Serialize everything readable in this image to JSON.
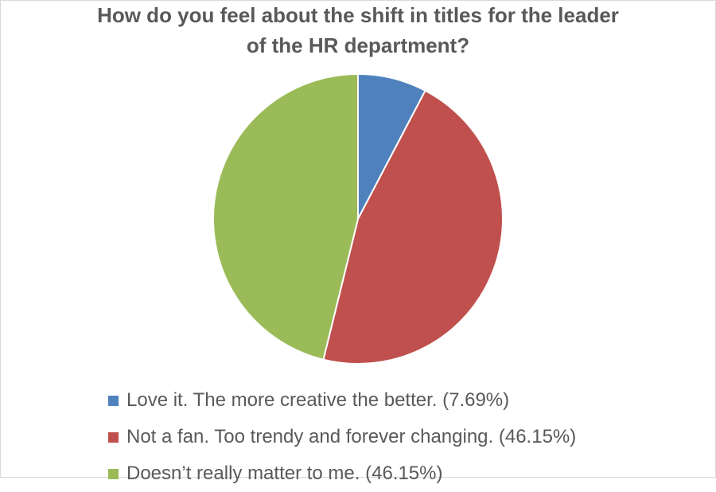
{
  "chart_data": {
    "type": "pie",
    "title": "How do you feel about the shift in titles for the leader of the HR department?",
    "categories": [
      "Love it. The more creative the better. (7.69%)",
      "Not a fan. Too trendy and forever changing. (46.15%)",
      "Doesn’t really matter to me. (46.15%)"
    ],
    "values": [
      7.69,
      46.15,
      46.15
    ],
    "colors": [
      "#4f81bd",
      "#c0504d",
      "#9bbb59"
    ],
    "legend": "bottom"
  }
}
